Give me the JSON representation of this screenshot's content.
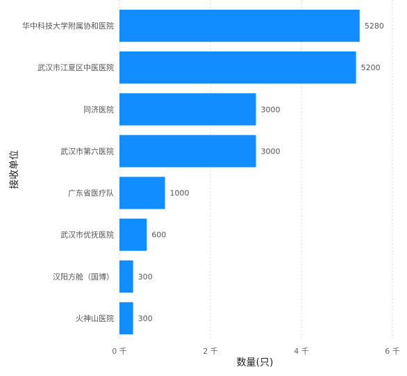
{
  "chart_data": {
    "type": "bar",
    "orientation": "horizontal",
    "categories": [
      "华中科技大学附属协和医院",
      "武汉市江夏区中医医院",
      "同济医院",
      "武汉市第六医院",
      "广东省医疗队",
      "武汉市优抚医院",
      "汉阳方舱（国博）",
      "火神山医院"
    ],
    "values": [
      5280,
      5200,
      3000,
      3000,
      1000,
      600,
      300,
      300
    ],
    "data_labels": [
      "5280",
      "5200",
      "3000",
      "3000",
      "1000",
      "600",
      "300",
      "300"
    ],
    "xlabel": "数量(只)",
    "ylabel": "接收单位",
    "xlim": [
      0,
      6000
    ],
    "x_ticks": [
      0,
      2000,
      4000,
      6000
    ],
    "x_tick_labels": [
      "0 千",
      "2 千",
      "4 千",
      "6 千"
    ],
    "grid": true,
    "bar_color": "#118DFF"
  }
}
